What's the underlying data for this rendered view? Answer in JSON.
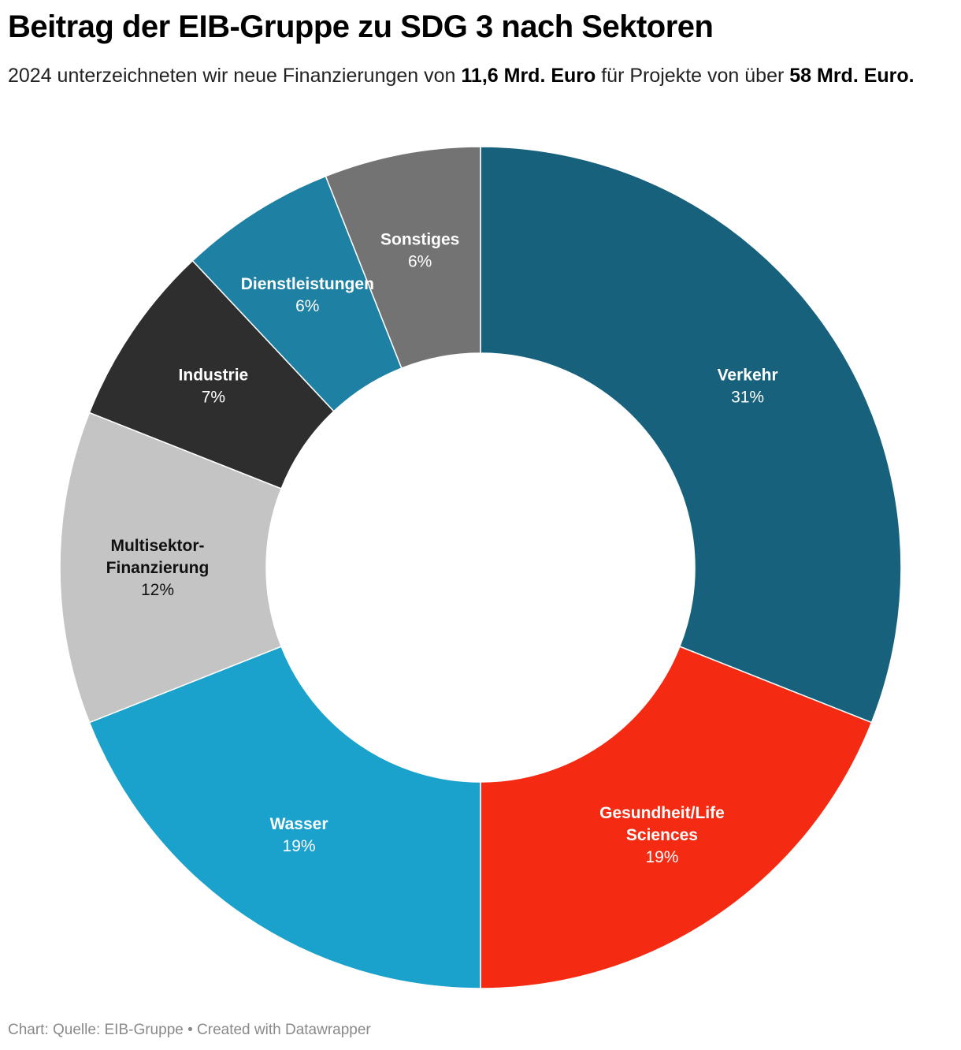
{
  "title": "Beitrag der EIB-Gruppe zu SDG 3 nach Sektoren",
  "subtitle": {
    "part1": "2024 unterzeichneten wir neue Finanzierungen von ",
    "amount1": "11,6 Mrd. Euro",
    "part2": " für Projekte von über ",
    "amount2": "58 Mrd. Euro."
  },
  "chart_data": {
    "type": "pie",
    "donut": true,
    "slices": [
      {
        "label": [
          "Verkehr"
        ],
        "value": 31,
        "value_label": "31%",
        "color": "#17617d",
        "text_color": "#ffffff"
      },
      {
        "label": [
          "Gesundheit/Life",
          "Sciences"
        ],
        "value": 19,
        "value_label": "19%",
        "color": "#f42a12",
        "text_color": "#ffffff"
      },
      {
        "label": [
          "Wasser"
        ],
        "value": 19,
        "value_label": "19%",
        "color": "#1aa1cc",
        "text_color": "#ffffff"
      },
      {
        "label": [
          "Multisektor-",
          "Finanzierung"
        ],
        "value": 12,
        "value_label": "12%",
        "color": "#c4c4c4",
        "text_color": "#111111"
      },
      {
        "label": [
          "Industrie"
        ],
        "value": 7,
        "value_label": "7%",
        "color": "#2e2e2e",
        "text_color": "#ffffff"
      },
      {
        "label": [
          "Dienstleistungen"
        ],
        "value": 6,
        "value_label": "6%",
        "color": "#1e80a2",
        "text_color": "#ffffff"
      },
      {
        "label": [
          "Sonstiges"
        ],
        "value": 6,
        "value_label": "6%",
        "color": "#737373",
        "text_color": "#ffffff"
      }
    ]
  },
  "footer": {
    "text": "Chart: Quelle: EIB-Gruppe • Created with Datawrapper"
  }
}
